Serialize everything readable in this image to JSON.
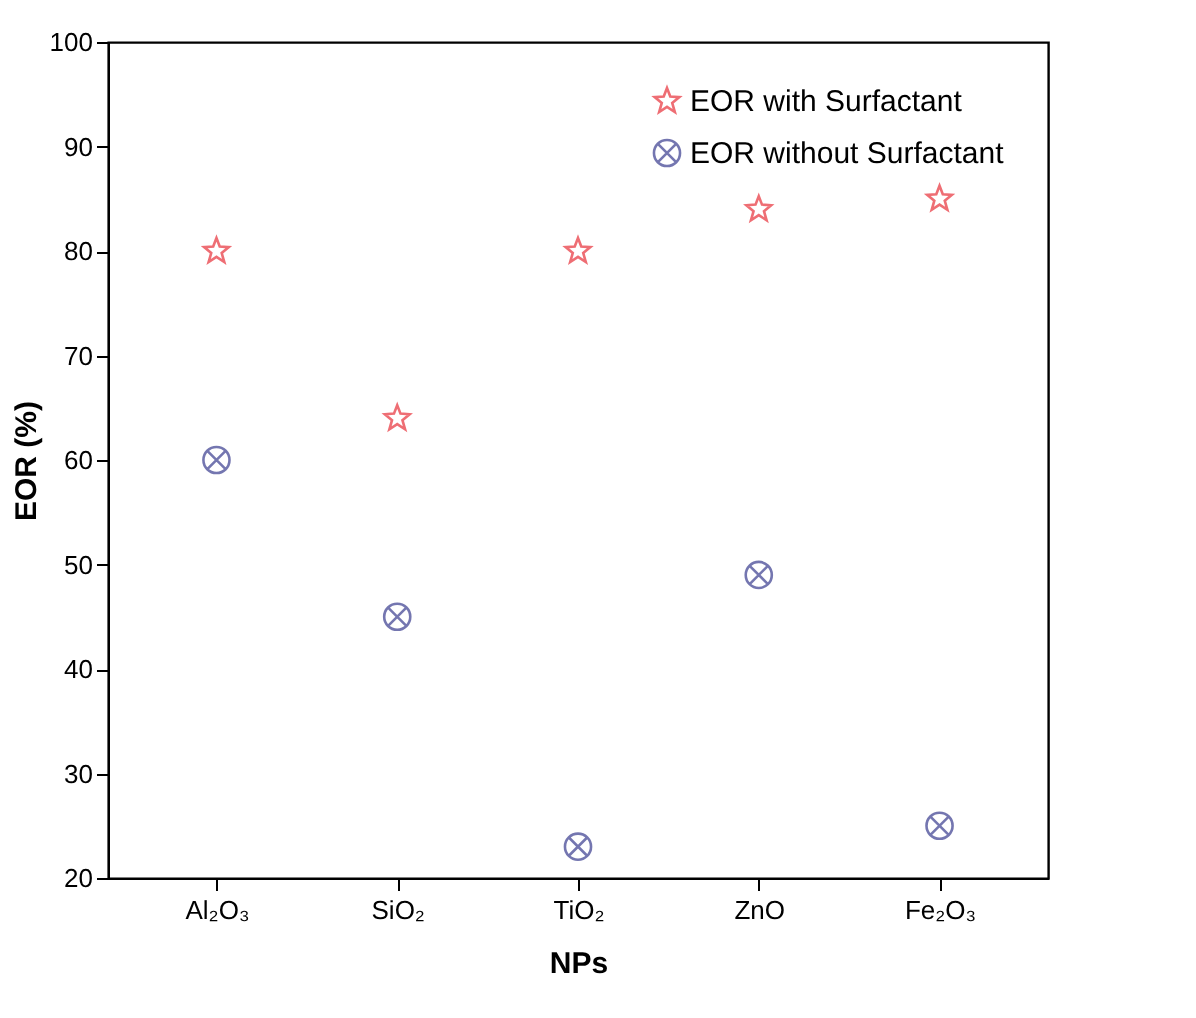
{
  "chart_data": {
    "type": "scatter",
    "xlabel": "NPs",
    "ylabel": "EOR (%)",
    "categories": [
      "Al₂O₃",
      "SiO₂",
      "TiO₂",
      "ZnO",
      "Fe₂O₃"
    ],
    "series": [
      {
        "name": "EOR with Surfactant",
        "color": "#e8313a",
        "marker": "star",
        "values": [
          80,
          64,
          80,
          84,
          85
        ]
      },
      {
        "name": "EOR without Surfactant",
        "color": "#3a3d8f",
        "marker": "cross",
        "values": [
          60,
          45,
          23,
          49,
          25
        ]
      }
    ],
    "ylim": [
      20,
      100
    ],
    "yticks": [
      20,
      30,
      40,
      50,
      60,
      70,
      80,
      90,
      100
    ],
    "grid": false,
    "legend": "top right"
  }
}
